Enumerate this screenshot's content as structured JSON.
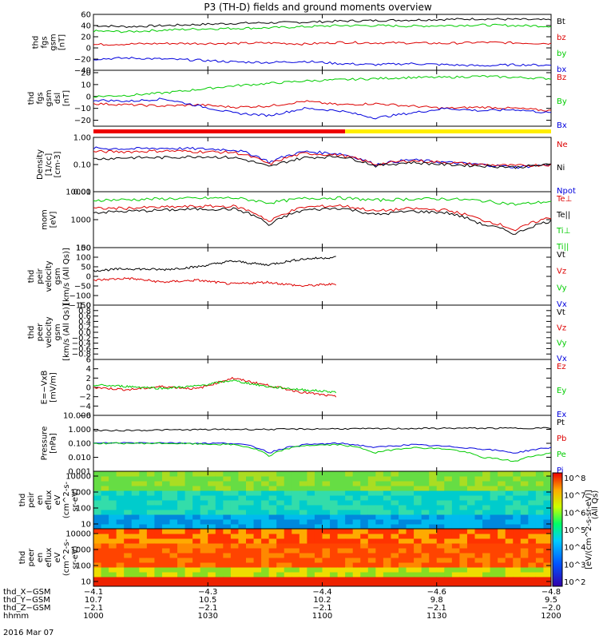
{
  "chart_data": {
    "type": "line",
    "title": "P3 (TH-D) fields and ground moments overview",
    "date_label": "2016 Mar 07",
    "panels": [
      {
        "id": "fgs",
        "ylabel": [
          "thd",
          "fgs",
          "gsm",
          "[nT]"
        ],
        "ylim": [
          -40,
          60
        ],
        "ticks": [
          "60",
          "40",
          "20",
          "0",
          "−20",
          "−40"
        ],
        "legend": [
          {
            "name": "Bt",
            "color": "#000000"
          },
          {
            "name": "bz",
            "color": "#dd0000"
          },
          {
            "name": "by",
            "color": "#00cc00"
          },
          {
            "name": "bx",
            "color": "#0000dd"
          }
        ],
        "series": [
          {
            "name": "Bt",
            "values": [
              40,
              38,
              40,
              42,
              44,
              45,
              46,
              48,
              49,
              50,
              51,
              52,
              51,
              50
            ]
          },
          {
            "name": "by",
            "values": [
              30,
              29,
              32,
              34,
              35,
              36,
              38,
              40,
              40,
              39,
              40,
              41,
              40,
              39
            ]
          },
          {
            "name": "bz",
            "values": [
              6,
              7,
              8,
              8,
              8,
              9,
              7,
              10,
              9,
              9,
              8,
              10,
              9,
              8
            ]
          },
          {
            "name": "bx",
            "values": [
              -20,
              -18,
              -20,
              -22,
              -25,
              -26,
              -24,
              -28,
              -30,
              -28,
              -30,
              -32,
              -30,
              -31
            ]
          }
        ]
      },
      {
        "id": "fgs_dsl",
        "ylabel": [
          "thd",
          "fgs",
          "gsm",
          "dsl",
          "[nT]"
        ],
        "ylim": [
          -25,
          22
        ],
        "ticks": [
          "20",
          "10",
          "0",
          "−10",
          "−20"
        ],
        "legend": [
          {
            "name": "Bz",
            "color": "#dd0000"
          },
          {
            "name": "By",
            "color": "#00cc00"
          },
          {
            "name": "Bx",
            "color": "#0000dd"
          }
        ],
        "series": [
          {
            "name": "By",
            "values": [
              0,
              1,
              3,
              6,
              9,
              11,
              13,
              14,
              15,
              16,
              16,
              17,
              16,
              15
            ]
          },
          {
            "name": "Bz",
            "values": [
              -6,
              -7,
              -8,
              -7,
              -9,
              -8,
              -4,
              -7,
              -6,
              -8,
              -10,
              -9,
              -10,
              -12
            ]
          },
          {
            "name": "Bx",
            "values": [
              -3,
              -4,
              -2,
              -8,
              -14,
              -16,
              -10,
              -12,
              -18,
              -14,
              -10,
              -12,
              -11,
              -14
            ]
          }
        ]
      },
      {
        "id": "density",
        "ylabel": [
          "Density",
          "[1/cc]",
          "[cm-3]"
        ],
        "scale": "log",
        "ylim": [
          0.01,
          1.0
        ],
        "ticks": [
          "1.00",
          "0.10",
          "0.01"
        ],
        "legend": [
          {
            "name": "Ne",
            "color": "#dd0000"
          },
          {
            "name": "Ni",
            "color": "#000000"
          },
          {
            "name": "Npot",
            "color": "#0000dd"
          }
        ],
        "series": [
          {
            "name": "Npot",
            "values": [
              0.4,
              0.38,
              0.4,
              0.38,
              0.35,
              0.12,
              0.3,
              0.25,
              0.1,
              0.15,
              0.12,
              0.1,
              0.08,
              0.1
            ]
          },
          {
            "name": "Ne",
            "values": [
              0.3,
              0.3,
              0.32,
              0.3,
              0.28,
              0.1,
              0.26,
              0.22,
              0.1,
              0.14,
              0.12,
              0.1,
              0.09,
              0.1
            ]
          },
          {
            "name": "Ni",
            "values": [
              0.16,
              0.18,
              0.18,
              0.2,
              0.18,
              0.08,
              0.18,
              0.2,
              0.09,
              0.12,
              0.1,
              0.09,
              0.08,
              0.1
            ]
          }
        ]
      },
      {
        "id": "temp",
        "ylabel": [
          "mom",
          "[eV]"
        ],
        "scale": "log",
        "ylim": [
          100,
          10000
        ],
        "ticks": [
          "10000",
          "1000",
          "100"
        ],
        "legend": [
          {
            "name": "Te⊥",
            "color": "#dd0000"
          },
          {
            "name": "Te||",
            "color": "#000000"
          },
          {
            "name": "Ti⊥",
            "color": "#00cc00"
          },
          {
            "name": "Ti||",
            "color": "#00cc00"
          }
        ],
        "series": [
          {
            "name": "Ti⊥",
            "values": [
              5000,
              5200,
              5600,
              5800,
              6000,
              4000,
              5800,
              6000,
              5000,
              5500,
              5600,
              4800,
              3500,
              4500
            ]
          },
          {
            "name": "Te⊥",
            "values": [
              2500,
              2600,
              2800,
              3000,
              3000,
              800,
              2800,
              3200,
              2000,
              2500,
              2200,
              1000,
              400,
              1200
            ]
          },
          {
            "name": "Te||",
            "values": [
              1800,
              2000,
              2200,
              2400,
              2400,
              600,
              2200,
              2600,
              1500,
              2000,
              1800,
              700,
              300,
              900
            ]
          }
        ]
      },
      {
        "id": "vel_peir",
        "ylabel": [
          "thd",
          "peir",
          "velocity",
          "gsm",
          "[km/s (All Qs)]"
        ],
        "ylim": [
          -150,
          150
        ],
        "ticks": [
          "150",
          "100",
          "50",
          "0",
          "−50",
          "−100",
          "−150"
        ],
        "legend": [
          {
            "name": "Vt",
            "color": "#000000"
          },
          {
            "name": "Vz",
            "color": "#dd0000"
          },
          {
            "name": "Vy",
            "color": "#00cc00"
          },
          {
            "name": "Vx",
            "color": "#0000dd"
          }
        ],
        "series": [
          {
            "name": "Vt",
            "values": [
              30,
              40,
              35,
              50,
              80,
              60,
              90,
              100
            ]
          },
          {
            "name": "Vz",
            "values": [
              -20,
              -10,
              -30,
              -20,
              -40,
              -30,
              -50,
              -40
            ]
          }
        ]
      },
      {
        "id": "vel_peer",
        "ylabel": [
          "thd",
          "peer",
          "velocity",
          "gsm",
          "[km/s (All Qs)]"
        ],
        "ylim": [
          -1,
          1
        ],
        "ticks": [
          "1.0",
          "0.8",
          "0.6",
          "0.4",
          "0.2",
          "0.0",
          "−0.2",
          "−0.4",
          "−0.6",
          "−0.8"
        ],
        "legend": [
          {
            "name": "Vt",
            "color": "#000000"
          },
          {
            "name": "Vz",
            "color": "#dd0000"
          },
          {
            "name": "Vy",
            "color": "#00cc00"
          },
          {
            "name": "Vx",
            "color": "#0000dd"
          }
        ],
        "series": []
      },
      {
        "id": "efield",
        "ylabel": [
          "E=−VxB",
          "[mV/m]"
        ],
        "ylim": [
          -6,
          6
        ],
        "ticks": [
          "6",
          "4",
          "2",
          "0",
          "−2",
          "−4",
          "−6"
        ],
        "legend": [
          {
            "name": "Ez",
            "color": "#dd0000"
          },
          {
            "name": "Ey",
            "color": "#00cc00"
          },
          {
            "name": "Ex",
            "color": "#0000dd"
          }
        ],
        "series": [
          {
            "name": "Ez",
            "values": [
              0,
              -0.5,
              0.2,
              -0.3,
              2,
              0.5,
              -1,
              -2
            ]
          },
          {
            "name": "Ey",
            "values": [
              0.5,
              0.2,
              -0.2,
              0.3,
              1.5,
              0.2,
              -0.5,
              -1
            ]
          }
        ]
      },
      {
        "id": "pressure",
        "ylabel": [
          "Pressure",
          "[nPa]"
        ],
        "scale": "log",
        "ylim": [
          0.001,
          10
        ],
        "ticks": [
          "10.000",
          "1.000",
          "0.100",
          "0.010",
          "0.001"
        ],
        "legend": [
          {
            "name": "Pt",
            "color": "#000000"
          },
          {
            "name": "Pb",
            "color": "#dd0000"
          },
          {
            "name": "Pe",
            "color": "#00cc00"
          },
          {
            "name": "Pi",
            "color": "#0000dd"
          }
        ],
        "series": [
          {
            "name": "Pt",
            "values": [
              0.8,
              0.85,
              0.9,
              0.95,
              1,
              1,
              1.05,
              1.1,
              1.1,
              1.15,
              1.2,
              1.2,
              1.2,
              1.25
            ]
          },
          {
            "name": "Pi",
            "values": [
              0.1,
              0.11,
              0.11,
              0.1,
              0.1,
              0.02,
              0.08,
              0.1,
              0.05,
              0.08,
              0.06,
              0.04,
              0.02,
              0.05
            ]
          },
          {
            "name": "Pe",
            "values": [
              0.1,
              0.1,
              0.1,
              0.09,
              0.08,
              0.01,
              0.07,
              0.08,
              0.02,
              0.05,
              0.04,
              0.01,
              0.005,
              0.02
            ]
          }
        ]
      },
      {
        "id": "peir_en",
        "type": "heatmap",
        "ylabel": [
          "thd",
          "peir",
          "en",
          "eflux",
          "eV",
          "(cm^2-s-",
          "sr-eV)"
        ],
        "scale": "log",
        "ylim": [
          5,
          20000
        ],
        "ticks": [
          "10000",
          "1000",
          "100",
          "10"
        ]
      },
      {
        "id": "peer_en",
        "type": "heatmap",
        "ylabel": [
          "thd",
          "peer",
          "en",
          "eflux",
          "eV",
          "(cm^2-s-",
          "sr-eV)"
        ],
        "scale": "log",
        "ylim": [
          5,
          20000
        ],
        "ticks": [
          "10000",
          "1000",
          "100",
          "10"
        ]
      }
    ],
    "colorbar": {
      "label": "[eV/(cm^2-s-sr-eV)]",
      "subtitle": "(All Qs)",
      "ticks": [
        "10^8",
        "10^7",
        "10^6",
        "10^5",
        "10^4",
        "10^3",
        "10^2"
      ]
    },
    "x_ticks": [
      {
        "hhmm": "1000",
        "thd_X_GSM": "−4.1",
        "thd_Y_GSM": "10.7",
        "thd_Z_GSM": "−2.1"
      },
      {
        "hhmm": "1030",
        "thd_X_GSM": "−4.3",
        "thd_Y_GSM": "10.5",
        "thd_Z_GSM": "−2.1"
      },
      {
        "hhmm": "1100",
        "thd_X_GSM": "−4.4",
        "thd_Y_GSM": "10.2",
        "thd_Z_GSM": "−2.1"
      },
      {
        "hhmm": "1130",
        "thd_X_GSM": "−4.6",
        "thd_Y_GSM": "9.8",
        "thd_Z_GSM": "−2.1"
      },
      {
        "hhmm": "1200",
        "thd_X_GSM": "−4.8",
        "thd_Y_GSM": "9.5",
        "thd_Z_GSM": "−2.0"
      }
    ],
    "row_labels": [
      "thd_X−GSM",
      "thd_Y−GSM",
      "thd_Z−GSM",
      "hhmm"
    ],
    "mode_bar": {
      "segments": [
        {
          "end": 0.55,
          "color": "#ee0000"
        },
        {
          "end": 1.0,
          "color": "#ffee00"
        }
      ]
    }
  }
}
